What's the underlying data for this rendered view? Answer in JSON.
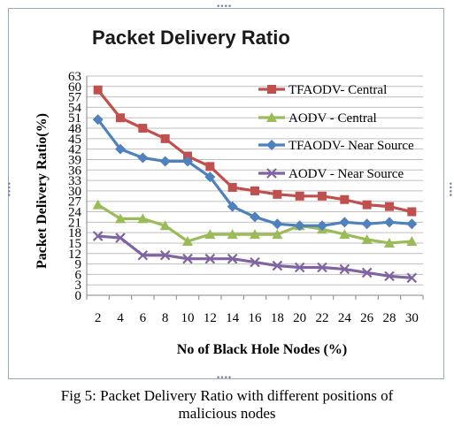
{
  "chart_data": {
    "type": "line",
    "title": "Packet Delivery Ratio",
    "xlabel": "No of Black Hole Nodes (%)",
    "ylabel": "Packet Delivery Ratio(%)",
    "x": [
      2,
      4,
      6,
      8,
      10,
      12,
      14,
      16,
      18,
      20,
      22,
      24,
      26,
      28,
      30
    ],
    "y_ticks": [
      0,
      3,
      6,
      9,
      12,
      15,
      18,
      21,
      24,
      27,
      30,
      33,
      36,
      39,
      42,
      45,
      48,
      51,
      54,
      57,
      60,
      63
    ],
    "ylim": [
      0,
      63
    ],
    "grid": true,
    "legend_position": "top-right",
    "series": [
      {
        "name": "TFAODV- Central",
        "color": "#c0504d",
        "marker": "square",
        "values": [
          59,
          51,
          48,
          45,
          40,
          37,
          31,
          30,
          29,
          28.5,
          28.5,
          27.5,
          26,
          25.5,
          24
        ]
      },
      {
        "name": "AODV - Central",
        "color": "#9bbb59",
        "marker": "triangle",
        "values": [
          26,
          22,
          22,
          20,
          15.5,
          17.5,
          17.5,
          17.5,
          17.5,
          20,
          19,
          17.5,
          16,
          15,
          15.5
        ]
      },
      {
        "name": "TFAODV- Near Source",
        "color": "#4f81bd",
        "marker": "diamond",
        "values": [
          50.5,
          42,
          39.5,
          38.5,
          38.5,
          34,
          25.5,
          22.5,
          20.5,
          20,
          20,
          21,
          20.5,
          21,
          20.5
        ]
      },
      {
        "name": "AODV -  Near Source",
        "color": "#8064a2",
        "marker": "x",
        "values": [
          17,
          16.5,
          11.5,
          11.5,
          10.5,
          10.5,
          10.5,
          9.5,
          8.5,
          8,
          8,
          7.5,
          6.5,
          5.5,
          5
        ]
      }
    ]
  },
  "caption": {
    "line1": "Fig 5: Packet Delivery Ratio with different positions of",
    "line2": "malicious nodes"
  }
}
